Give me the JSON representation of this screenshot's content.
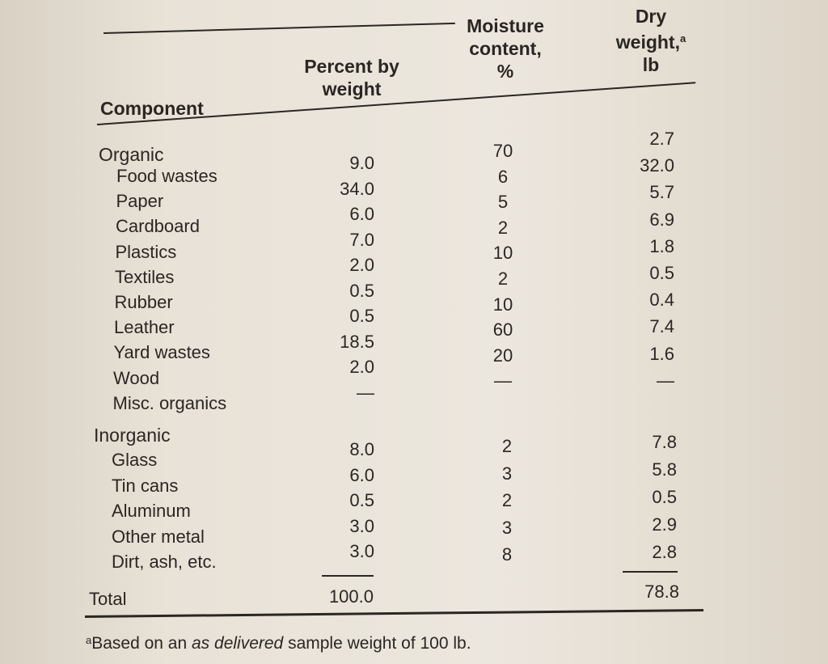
{
  "headers": {
    "component": "Component",
    "percent": [
      "Percent by",
      "weight"
    ],
    "moisture": [
      "Moisture",
      "content,",
      "%"
    ],
    "dry": [
      "Dry",
      "weight,",
      "lb"
    ],
    "dry_footnote_mark": "a"
  },
  "groups": {
    "organic": "Organic",
    "inorganic": "Inorganic"
  },
  "organic_rows": [
    {
      "name": "Food wastes",
      "percent": "9.0",
      "moisture": "70",
      "dry": "2.7"
    },
    {
      "name": "Paper",
      "percent": "34.0",
      "moisture": "6",
      "dry": "32.0"
    },
    {
      "name": "Cardboard",
      "percent": "6.0",
      "moisture": "5",
      "dry": "5.7"
    },
    {
      "name": "Plastics",
      "percent": "7.0",
      "moisture": "2",
      "dry": "6.9"
    },
    {
      "name": "Textiles",
      "percent": "2.0",
      "moisture": "10",
      "dry": "1.8"
    },
    {
      "name": "Rubber",
      "percent": "0.5",
      "moisture": "2",
      "dry": "0.5"
    },
    {
      "name": "Leather",
      "percent": "0.5",
      "moisture": "10",
      "dry": "0.4"
    },
    {
      "name": "Yard wastes",
      "percent": "18.5",
      "moisture": "60",
      "dry": "7.4"
    },
    {
      "name": "Wood",
      "percent": "2.0",
      "moisture": "20",
      "dry": "1.6"
    },
    {
      "name": "Misc. organics",
      "percent": "—",
      "moisture": "—",
      "dry": "—"
    }
  ],
  "inorganic_rows": [
    {
      "name": "Glass",
      "percent": "8.0",
      "moisture": "2",
      "dry": "7.8"
    },
    {
      "name": "Tin cans",
      "percent": "6.0",
      "moisture": "3",
      "dry": "5.8"
    },
    {
      "name": "Aluminum",
      "percent": "0.5",
      "moisture": "2",
      "dry": "0.5"
    },
    {
      "name": "Other metal",
      "percent": "3.0",
      "moisture": "3",
      "dry": "2.9"
    },
    {
      "name": "Dirt, ash, etc.",
      "percent": "3.0",
      "moisture": "8",
      "dry": "2.8"
    }
  ],
  "total": {
    "label": "Total",
    "percent": "100.0",
    "dry": "78.8"
  },
  "footnote": {
    "mark": "a",
    "text_before": "Based on an ",
    "emphasis": "as delivered",
    "text_after": " sample weight of 100 lb."
  }
}
